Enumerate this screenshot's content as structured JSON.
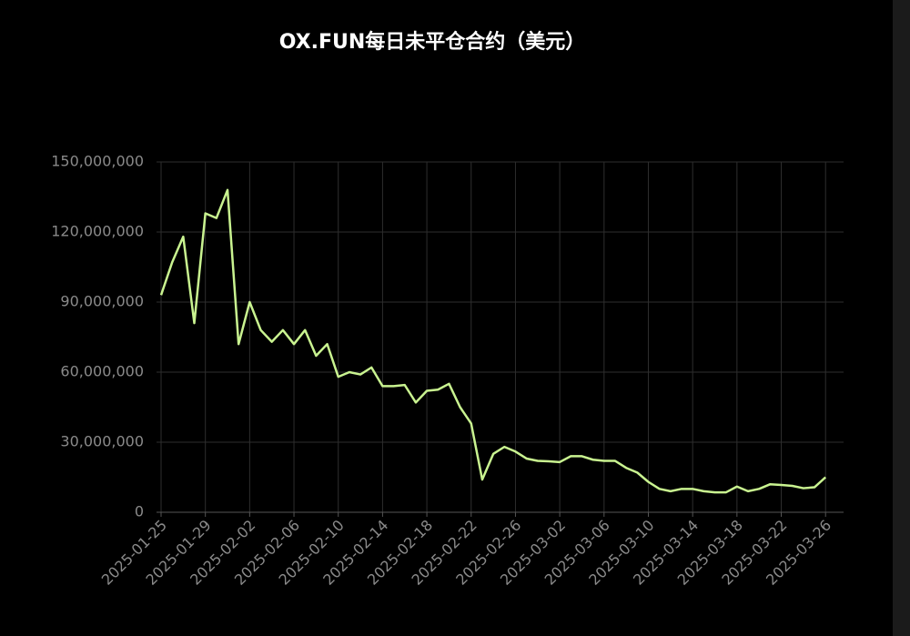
{
  "chart_data": {
    "type": "line",
    "title": "OX.FUN每日未平仓合约（美元）",
    "categories": [
      "2025-01-25",
      null,
      null,
      null,
      "2025-01-29",
      null,
      null,
      null,
      "2025-02-02",
      null,
      null,
      null,
      "2025-02-06",
      null,
      null,
      null,
      "2025-02-10",
      null,
      null,
      null,
      "2025-02-14",
      null,
      null,
      null,
      "2025-02-18",
      null,
      null,
      null,
      "2025-02-22",
      null,
      null,
      null,
      "2025-02-26",
      null,
      null,
      null,
      "2025-03-02",
      null,
      null,
      null,
      "2025-03-06",
      null,
      null,
      null,
      "2025-03-10",
      null,
      null,
      null,
      "2025-03-14",
      null,
      null,
      null,
      "2025-03-18",
      null,
      null,
      null,
      "2025-03-22",
      null,
      null,
      null,
      "2025-03-26"
    ],
    "values": [
      93000000,
      107000000,
      118000000,
      81000000,
      128000000,
      126000000,
      138000000,
      72000000,
      90000000,
      78000000,
      73000000,
      78000000,
      72000000,
      78000000,
      67000000,
      72000000,
      58000000,
      60000000,
      59000000,
      62000000,
      54000000,
      54000000,
      54500000,
      47000000,
      52000000,
      52500000,
      55000000,
      45000000,
      38000000,
      14000000,
      25000000,
      28000000,
      26000000,
      23000000,
      22000000,
      21800000,
      21500000,
      24000000,
      24000000,
      22500000,
      22000000,
      22000000,
      19000000,
      17000000,
      13000000,
      10000000,
      9000000,
      10000000,
      10000000,
      9000000,
      8500000,
      8500000,
      11000000,
      9000000,
      10000000,
      12000000,
      11700000,
      11300000,
      10300000,
      10700000,
      15000000
    ],
    "color": "#c9f390",
    "ylim": [
      0,
      150000000
    ],
    "yticks": [
      0,
      {
        "value": 30000000,
        "label": "30,000,000"
      },
      {
        "value": 60000000,
        "label": "60,000,000"
      },
      {
        "value": 90000000,
        "label": "90,000,000"
      },
      {
        "value": 120000000,
        "label": "120,000,000"
      },
      {
        "value": 150000000,
        "label": "150,000,000"
      }
    ],
    "grid": true
  }
}
